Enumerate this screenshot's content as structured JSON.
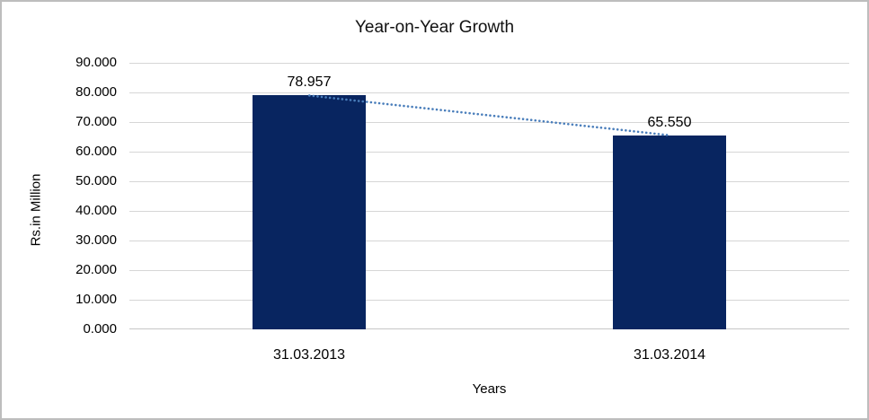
{
  "chart_data": {
    "type": "bar",
    "title": "Year-on-Year Growth",
    "xlabel": "Years",
    "ylabel": "Rs.in Million",
    "categories": [
      "31.03.2013",
      "31.03.2014"
    ],
    "series": [
      {
        "name": "value",
        "values": [
          78.957,
          65.55
        ]
      }
    ],
    "data_labels": [
      "78.957",
      "65.550"
    ],
    "y_ticks": [
      "90.000",
      "80.000",
      "70.000",
      "60.000",
      "50.000",
      "40.000",
      "30.000",
      "20.000",
      "10.000",
      "0.000"
    ],
    "ylim": [
      0,
      90
    ],
    "grid": true,
    "legend_position": "none",
    "bar_color": "#082560",
    "trendline": {
      "type": "linear",
      "style": "dotted",
      "color": "#4a7ebb"
    },
    "gridline_color": "#d6d6d6",
    "frame_color": "#bdbdbd"
  }
}
